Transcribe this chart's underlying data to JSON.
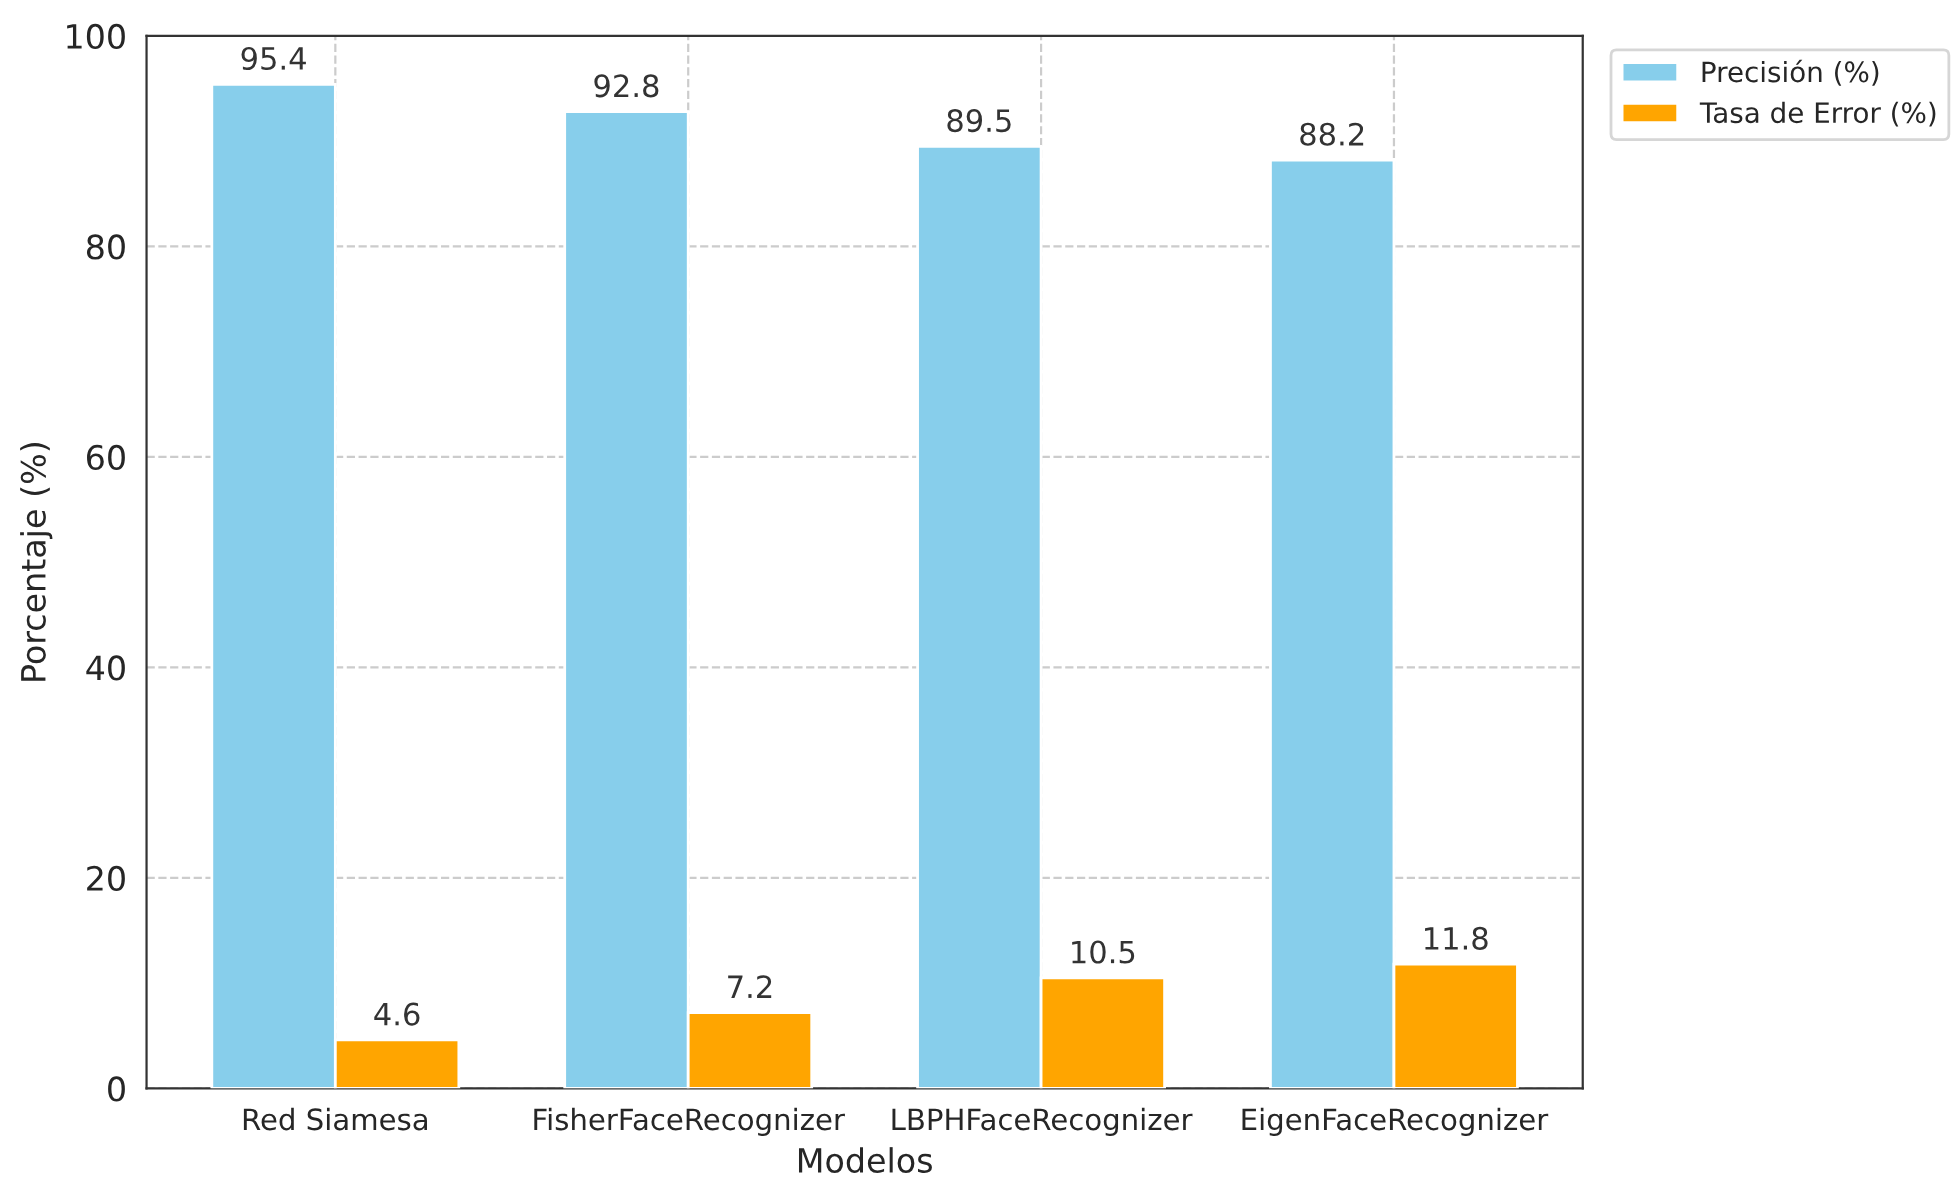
{
  "chart_data": {
    "type": "bar",
    "xlabel": "Modelos",
    "ylabel": "Porcentaje (%)",
    "categories": [
      "Red Siamesa",
      "FisherFaceRecognizer",
      "LBPHFaceRecognizer",
      "EigenFaceRecognizer"
    ],
    "series": [
      {
        "name": "Precisión (%)",
        "color": "#87ceeb",
        "values": [
          95.4,
          92.8,
          89.5,
          88.2
        ]
      },
      {
        "name": "Tasa de Error (%)",
        "color": "#ffa500",
        "values": [
          4.6,
          7.2,
          10.5,
          11.8
        ]
      }
    ],
    "ylim": [
      0,
      100
    ],
    "yticks": [
      0,
      20,
      40,
      60,
      80,
      100
    ],
    "grid": true,
    "legend": "top right",
    "data_labels": true
  }
}
